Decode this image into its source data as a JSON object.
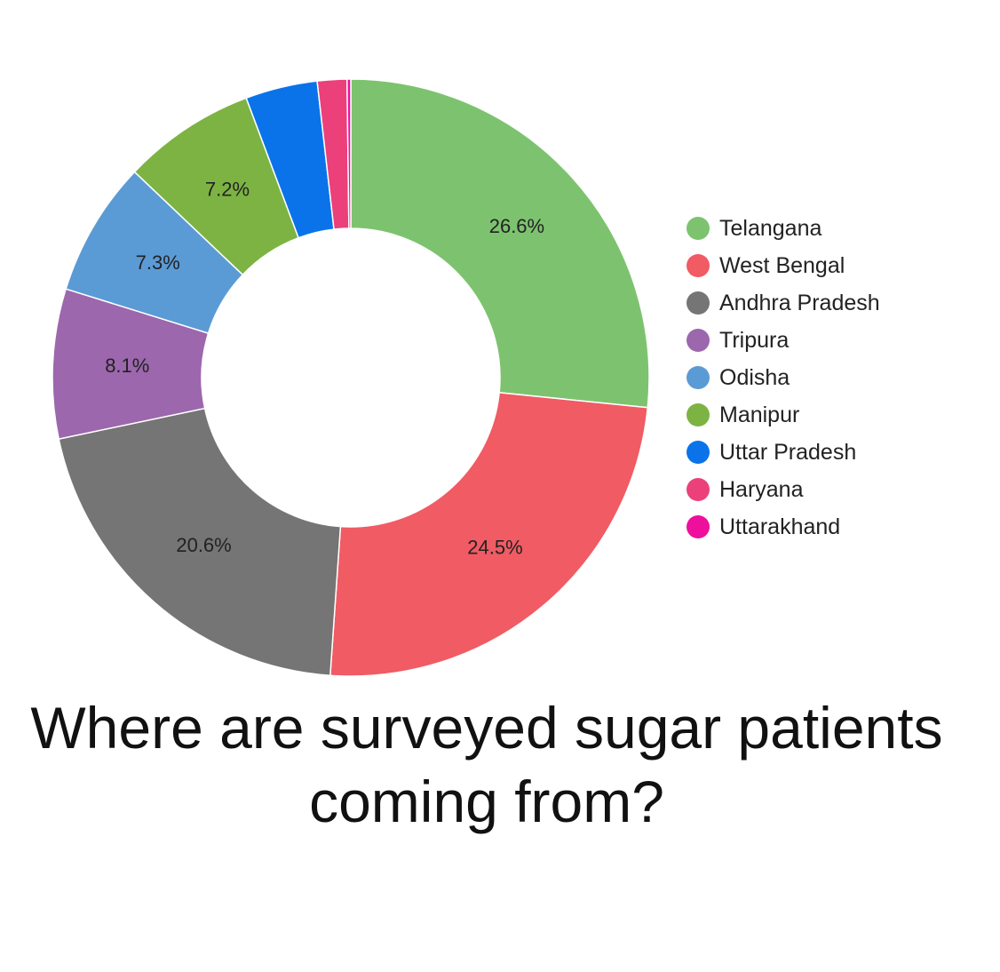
{
  "chart_data": {
    "type": "pie",
    "donut": true,
    "title": "Where are surveyed sugar patients coming from?",
    "legend_position": "right",
    "slices": [
      {
        "name": "Telangana",
        "value": 26.6,
        "label": "26.6%",
        "color": "#7dc36f"
      },
      {
        "name": "West Bengal",
        "value": 24.5,
        "label": "24.5%",
        "color": "#f05b64"
      },
      {
        "name": "Andhra Pradesh",
        "value": 20.6,
        "label": "20.6%",
        "color": "#757575"
      },
      {
        "name": "Tripura",
        "value": 8.1,
        "label": "8.1%",
        "color": "#9c67ad"
      },
      {
        "name": "Odisha",
        "value": 7.3,
        "label": "7.3%",
        "color": "#5b9bd5"
      },
      {
        "name": "Manipur",
        "value": 7.2,
        "label": "7.2%",
        "color": "#7db343"
      },
      {
        "name": "Uttar Pradesh",
        "value": 3.9,
        "label": "",
        "color": "#0a73ea"
      },
      {
        "name": "Haryana",
        "value": 1.6,
        "label": "",
        "color": "#ec407a"
      },
      {
        "name": "Uttarakhand",
        "value": 0.2,
        "label": "",
        "color": "#ee0f9c"
      }
    ]
  }
}
